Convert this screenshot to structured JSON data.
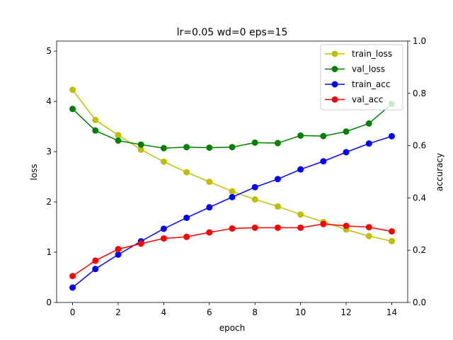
{
  "chart_data": {
    "type": "line",
    "title": "lr=0.05 wd=0 eps=15",
    "xlabel": "epoch",
    "ylabel_left": "loss",
    "ylabel_right": "accuracy",
    "x": [
      0,
      1,
      2,
      3,
      4,
      5,
      6,
      7,
      8,
      9,
      10,
      11,
      12,
      13,
      14
    ],
    "xlim": [
      -0.7,
      14.7
    ],
    "ylim_left": [
      0,
      5.2
    ],
    "ylim_right": [
      0,
      1.0
    ],
    "xticks": [
      "0",
      "2",
      "4",
      "6",
      "8",
      "10",
      "12",
      "14"
    ],
    "yticks_left": [
      "0",
      "1",
      "2",
      "3",
      "4",
      "5"
    ],
    "yticks_right": [
      "0.0",
      "0.2",
      "0.4",
      "0.6",
      "0.8",
      "1.0"
    ],
    "legend_position": "top-right",
    "series": [
      {
        "name": "train_loss",
        "axis": "left",
        "color": "#bfbf00",
        "values": [
          4.23,
          3.63,
          3.33,
          3.04,
          2.8,
          2.59,
          2.4,
          2.21,
          2.05,
          1.91,
          1.75,
          1.6,
          1.45,
          1.32,
          1.22
        ]
      },
      {
        "name": "val_loss",
        "axis": "left",
        "color": "#008000",
        "values": [
          3.85,
          3.42,
          3.22,
          3.14,
          3.07,
          3.09,
          3.08,
          3.09,
          3.18,
          3.17,
          3.32,
          3.31,
          3.4,
          3.56,
          3.95
        ]
      },
      {
        "name": "train_acc",
        "axis": "right",
        "color": "#0000ff",
        "values": [
          0.057,
          0.128,
          0.183,
          0.234,
          0.282,
          0.324,
          0.364,
          0.403,
          0.441,
          0.472,
          0.509,
          0.54,
          0.575,
          0.608,
          0.636
        ]
      },
      {
        "name": "val_acc",
        "axis": "right",
        "color": "#ff0000",
        "values": [
          0.101,
          0.16,
          0.204,
          0.225,
          0.245,
          0.251,
          0.268,
          0.283,
          0.286,
          0.286,
          0.286,
          0.3,
          0.293,
          0.288,
          0.272
        ]
      }
    ]
  }
}
